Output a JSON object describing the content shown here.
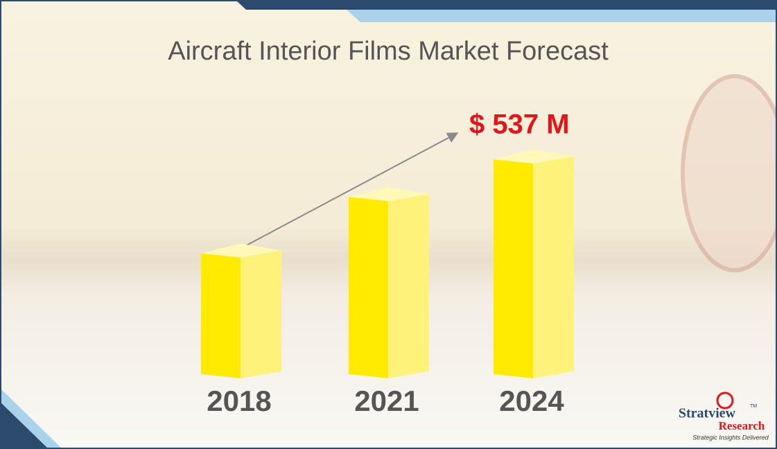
{
  "chart_data": {
    "type": "bar3d",
    "title": "Aircraft Interior Films Market Forecast",
    "categories": [
      "2018",
      "2021",
      "2024"
    ],
    "values": [
      302,
      443,
      537
    ],
    "value_labels": [
      null,
      null,
      "$ 537 M"
    ],
    "color": "#ffea00"
  },
  "logo": {
    "name": "Stratview",
    "tm": "TM",
    "sub": "Research",
    "tagline": "Strategic Insights Delivered"
  }
}
